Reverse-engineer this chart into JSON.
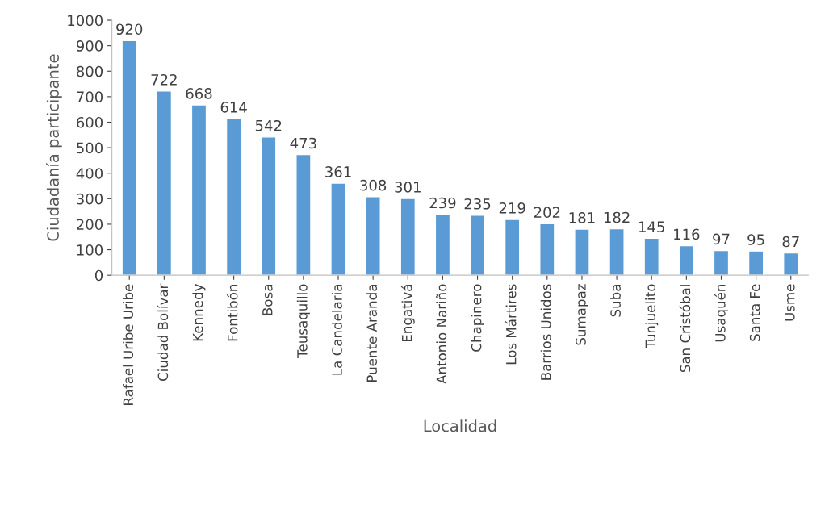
{
  "chart_data": {
    "type": "bar",
    "xlabel": "Localidad",
    "ylabel": "Ciudadanía participante",
    "categories": [
      "Rafael Uribe Uribe",
      "Ciudad Bolívar",
      "Kennedy",
      "Fontibón",
      "Bosa",
      "Teusaquillo",
      "La Candelaria",
      "Puente Aranda",
      "Engativá",
      "Antonio Nariño",
      "Chapinero",
      "Los Mártires",
      "Barrios Unidos",
      "Sumapaz",
      "Suba",
      "Tunjuelito",
      "San Cristóbal",
      "Usaquén",
      "Santa Fe",
      "Usme"
    ],
    "values": [
      920,
      722,
      668,
      614,
      542,
      473,
      361,
      308,
      301,
      239,
      235,
      219,
      202,
      181,
      182,
      145,
      116,
      97,
      95,
      87
    ],
    "color": "#5b9bd5",
    "ylim": [
      0,
      1000
    ],
    "yticks": [
      0,
      100,
      200,
      300,
      400,
      500,
      600,
      700,
      800,
      900,
      1000
    ],
    "data_labels": true,
    "grid": false,
    "legend": false
  }
}
